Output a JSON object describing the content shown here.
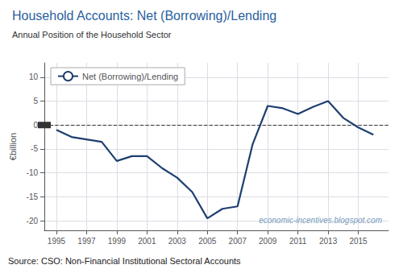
{
  "chart_data": {
    "type": "line",
    "title": "Household Accounts: Net (Borrowing)/Lending",
    "subtitle": "Annual Position of the Household Sector",
    "source": "Source: CSO: Non-Financial Institutional Sectoral Accounts",
    "watermark": "economic-incentives.blogspot.com",
    "ylabel": "€billion",
    "x": [
      1995,
      1996,
      1997,
      1998,
      1999,
      2000,
      2001,
      2002,
      2003,
      2004,
      2005,
      2006,
      2007,
      2008,
      2009,
      2010,
      2011,
      2012,
      2013,
      2014,
      2015,
      2016
    ],
    "series": [
      {
        "name": "Net (Borrowing)/Lending",
        "color": "#1e3f6f",
        "values": [
          -1.0,
          -2.5,
          -3.0,
          -3.5,
          -7.5,
          -6.5,
          -6.5,
          -9.0,
          -11.0,
          -14.0,
          -19.5,
          -17.5,
          -17.0,
          -4.0,
          4.0,
          3.5,
          2.3,
          3.8,
          5.0,
          1.5,
          -0.5,
          -2.0
        ]
      }
    ],
    "reference_lines": [
      {
        "y": 0,
        "line_style": "dashed",
        "color": "#333333"
      }
    ],
    "xlim": [
      1994.2,
      2017.0
    ],
    "xticks": [
      1995,
      1997,
      1999,
      2001,
      2003,
      2005,
      2007,
      2009,
      2011,
      2013,
      2015
    ],
    "ylim": [
      -22,
      13
    ],
    "yticks": [
      -20,
      -15,
      -10,
      -5,
      0,
      5,
      10
    ],
    "grid": true,
    "legend": "upper left"
  }
}
